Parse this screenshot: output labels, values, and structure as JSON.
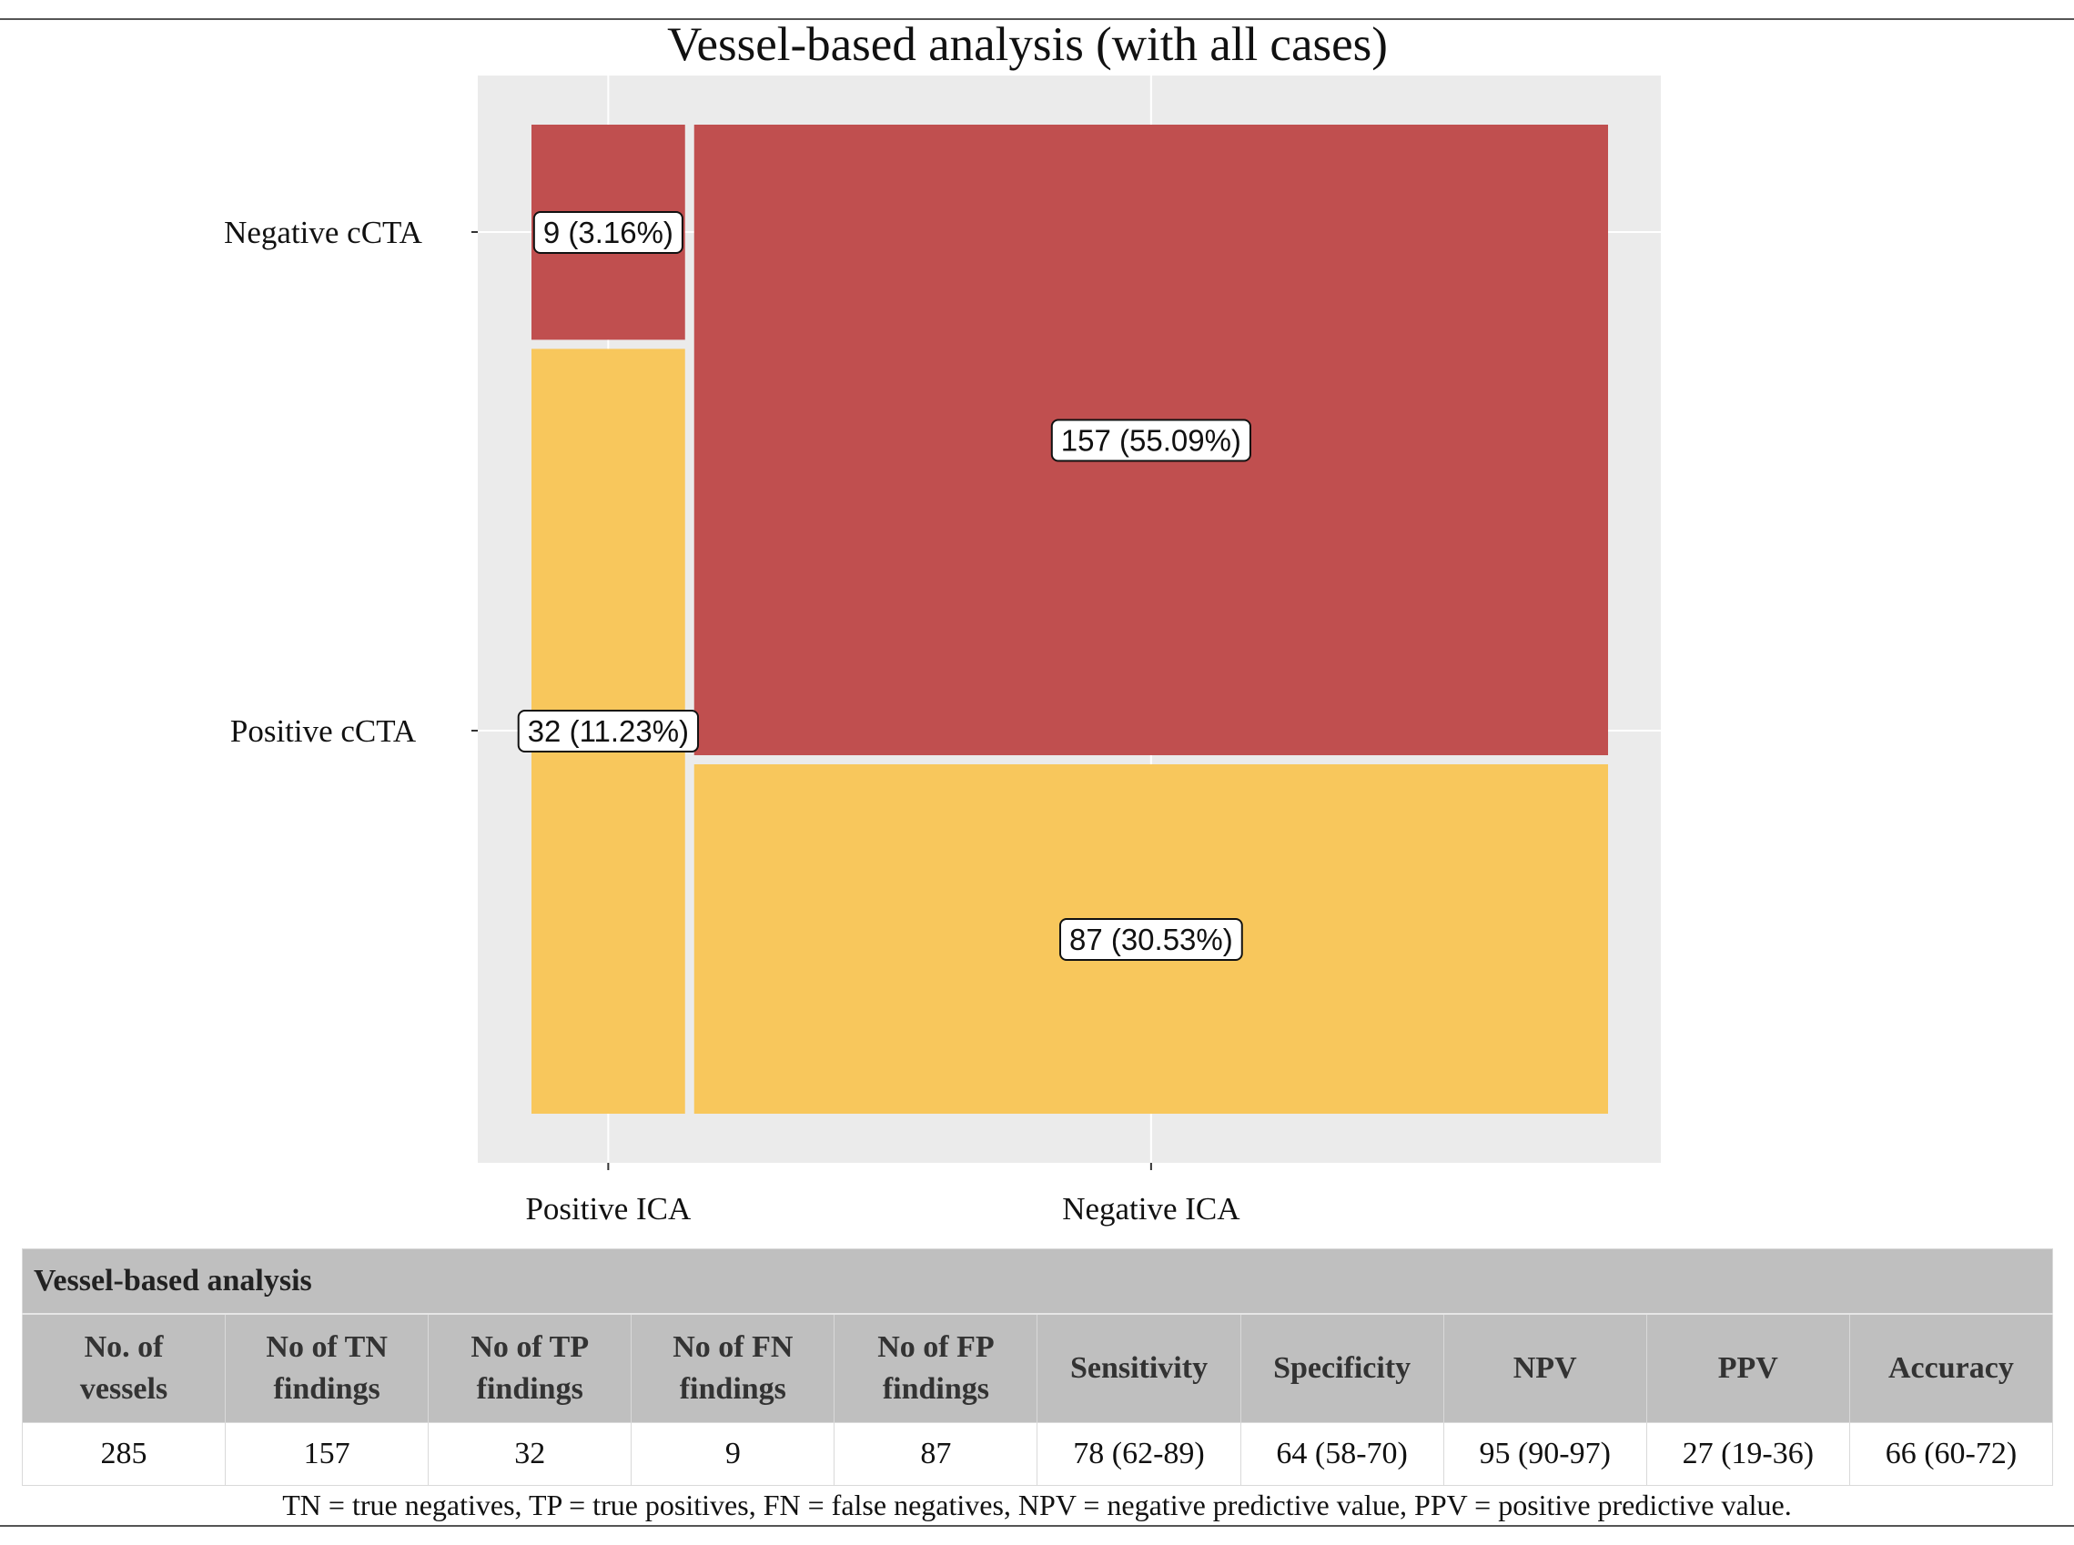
{
  "chart_data": {
    "type": "mosaic",
    "title": "Vessel-based analysis (with all cases)",
    "x_categories": [
      "Positive ICA",
      "Negative ICA"
    ],
    "y_categories": [
      "Negative cCTA",
      "Positive cCTA"
    ],
    "total": 285,
    "cells": [
      {
        "x": "Positive ICA",
        "y": "Negative cCTA",
        "count": 9,
        "label": "9 (3.16%)",
        "color": "#c04f4f"
      },
      {
        "x": "Positive ICA",
        "y": "Positive cCTA",
        "count": 32,
        "label": "32 (11.23%)",
        "color": "#f8c75c"
      },
      {
        "x": "Negative ICA",
        "y": "Negative cCTA",
        "count": 157,
        "label": "157 (55.09%)",
        "color": "#c04f4f"
      },
      {
        "x": "Negative ICA",
        "y": "Positive cCTA",
        "count": 87,
        "label": "87 (30.53%)",
        "color": "#f8c75c"
      }
    ],
    "panel_background": "#ebebeb",
    "grid": true
  },
  "table": {
    "caption": "Vessel-based analysis",
    "headers": [
      [
        "No. of",
        "vessels"
      ],
      [
        "No of TN",
        "findings"
      ],
      [
        "No of TP",
        "findings"
      ],
      [
        "No of FN",
        "findings"
      ],
      [
        "No of FP",
        "findings"
      ],
      [
        "Sensitivity"
      ],
      [
        "Specificity"
      ],
      [
        "NPV"
      ],
      [
        "PPV"
      ],
      [
        "Accuracy"
      ]
    ],
    "row": [
      "285",
      "157",
      "32",
      "9",
      "87",
      "78 (62-89)",
      "64 (58-70)",
      "95 (90-97)",
      "27 (19-36)",
      "66 (60-72)"
    ],
    "footnote": "TN = true negatives, TP = true positives, FN = false negatives, NPV = negative predictive value, PPV = positive predictive value."
  }
}
